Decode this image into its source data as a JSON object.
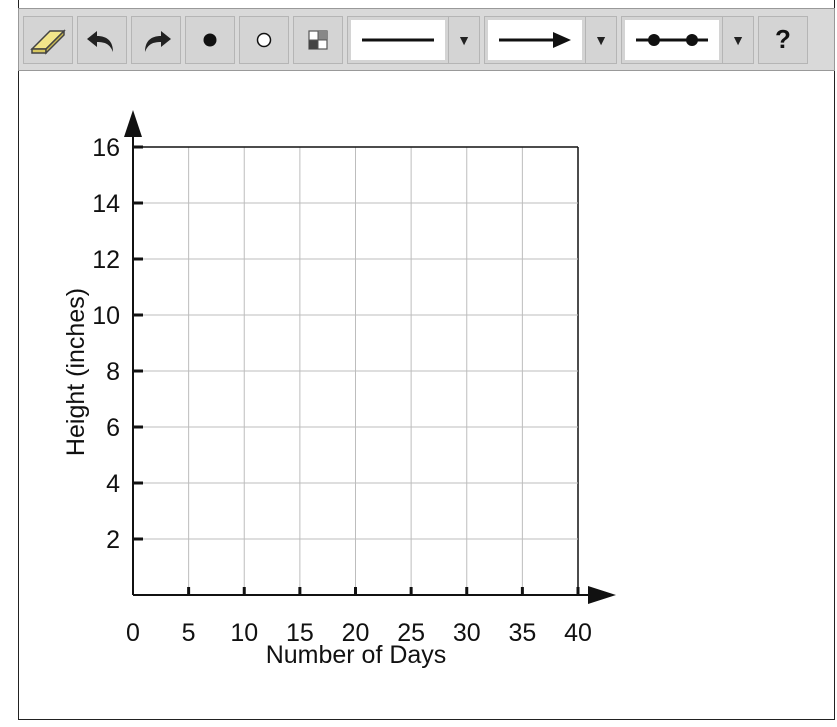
{
  "toolbar": {
    "tools": [
      {
        "name": "eraser-icon"
      },
      {
        "name": "undo-icon"
      },
      {
        "name": "redo-icon"
      },
      {
        "name": "filled-point-icon"
      },
      {
        "name": "open-point-icon"
      },
      {
        "name": "grid-toggle-icon"
      }
    ],
    "line_style_icon": "solid-line-icon",
    "endpoint_style_icon": "arrow-line-icon",
    "segment_style_icon": "segment-line-icon",
    "dropdown_glyph": "▼",
    "help_label": "?"
  },
  "chart_data": {
    "type": "scatter",
    "title": "",
    "xlabel": "Number of Days",
    "ylabel": "Height (inches)",
    "xlim": [
      0,
      40
    ],
    "ylim": [
      0,
      16
    ],
    "x_ticks": [
      0,
      5,
      10,
      15,
      20,
      25,
      30,
      35,
      40
    ],
    "y_ticks": [
      2,
      4,
      6,
      8,
      10,
      12,
      14,
      16
    ],
    "grid": true,
    "series": []
  }
}
